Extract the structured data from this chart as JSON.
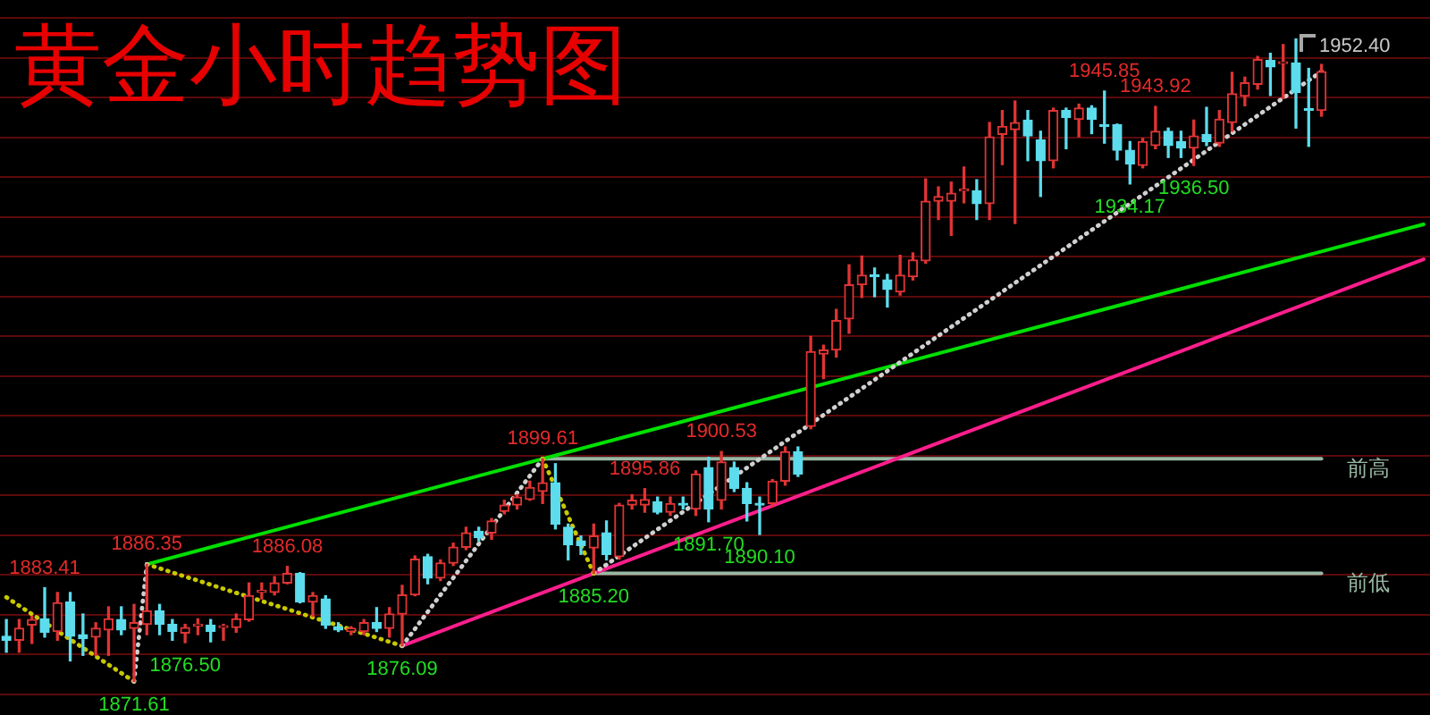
{
  "chart_data": {
    "type": "candlestick",
    "title": "黄金小时趋势图",
    "categories": [
      null,
      null,
      null,
      null,
      null,
      null,
      null,
      null,
      null,
      null,
      null,
      null,
      null,
      null,
      null,
      null,
      null,
      null,
      null,
      null,
      null,
      null,
      null,
      null,
      null,
      null,
      null,
      null,
      null,
      null,
      null,
      null,
      null,
      null,
      null,
      null,
      null,
      null,
      null,
      null,
      null,
      null,
      null,
      null,
      null,
      null,
      null,
      null,
      null,
      null,
      null,
      null,
      null,
      null,
      null,
      null,
      null,
      null,
      null,
      null,
      null,
      null,
      null,
      null,
      null,
      null,
      null,
      null,
      null,
      null,
      null,
      null,
      null,
      null,
      null,
      null,
      null,
      null,
      null,
      null,
      null,
      null,
      null,
      null,
      null,
      null,
      null,
      null,
      null,
      null,
      null,
      null,
      null,
      null,
      null,
      null,
      null,
      null,
      null,
      null,
      null,
      null,
      null,
      null,
      null,
      null,
      null,
      null,
      null,
      null,
      null,
      null
    ],
    "ohlc": [
      [
        1877.3,
        1879.4,
        1875.3,
        1876.8
      ],
      [
        1876.8,
        1879.4,
        1875.3,
        1878.3
      ],
      [
        1878.7,
        1879.8,
        1876.4,
        1879.4
      ],
      [
        1879.5,
        1883.41,
        1877.2,
        1877.8
      ],
      [
        1877.9,
        1882.8,
        1876.8,
        1881.5
      ],
      [
        1881.6,
        1882.8,
        1874.2,
        1877.3
      ],
      [
        1877.5,
        1880.1,
        1874.9,
        1877.0
      ],
      [
        1877.2,
        1879.0,
        1874.9,
        1878.3
      ],
      [
        1878.1,
        1881.0,
        1874.9,
        1879.5
      ],
      [
        1879.4,
        1881.0,
        1877.5,
        1878.1
      ],
      [
        1878.3,
        1881.3,
        1871.61,
        1879.0
      ],
      [
        1878.8,
        1886.35,
        1877.5,
        1880.5
      ],
      [
        1880.5,
        1881.3,
        1877.5,
        1878.8
      ],
      [
        1878.8,
        1879.4,
        1876.8,
        1877.9
      ],
      [
        1877.7,
        1878.8,
        1876.5,
        1878.4
      ],
      [
        1878.6,
        1879.5,
        1877.5,
        1878.8
      ],
      [
        1878.7,
        1879.4,
        1876.6,
        1877.9
      ],
      [
        1878.4,
        1878.8,
        1876.8,
        1878.5
      ],
      [
        1878.4,
        1880.1,
        1877.8,
        1879.5
      ],
      [
        1879.4,
        1884.0,
        1879.2,
        1882.4
      ],
      [
        1882.8,
        1884.0,
        1882.0,
        1883.1
      ],
      [
        1882.8,
        1884.8,
        1882.5,
        1884.0
      ],
      [
        1884.0,
        1886.08,
        1883.9,
        1885.2
      ],
      [
        1885.2,
        1885.3,
        1881.5,
        1881.6
      ],
      [
        1881.6,
        1882.8,
        1879.8,
        1882.4
      ],
      [
        1882.0,
        1882.4,
        1878.3,
        1878.7
      ],
      [
        1878.5,
        1879.0,
        1877.9,
        1878.1
      ],
      [
        1877.9,
        1878.5,
        1877.5,
        1878.3
      ],
      [
        1877.9,
        1879.4,
        1877.5,
        1879.0
      ],
      [
        1879.0,
        1880.9,
        1877.9,
        1878.3
      ],
      [
        1878.3,
        1880.9,
        1877.2,
        1880.1
      ],
      [
        1880.1,
        1883.7,
        1876.09,
        1882.5
      ],
      [
        1882.5,
        1887.4,
        1882.4,
        1887.0
      ],
      [
        1887.3,
        1887.6,
        1883.9,
        1884.6
      ],
      [
        1884.6,
        1886.9,
        1884.3,
        1886.5
      ],
      [
        1886.5,
        1889.0,
        1886.2,
        1888.5
      ],
      [
        1888.5,
        1891.0,
        1888.2,
        1890.3
      ],
      [
        1890.5,
        1891.0,
        1889.3,
        1889.7
      ],
      [
        1890.3,
        1892.1,
        1889.5,
        1891.8
      ],
      [
        1893.0,
        1894.4,
        1892.7,
        1893.8
      ],
      [
        1893.8,
        1895.1,
        1893.3,
        1894.8
      ],
      [
        1894.5,
        1896.8,
        1894.4,
        1896.0
      ],
      [
        1895.5,
        1899.61,
        1894.0,
        1896.6
      ],
      [
        1896.6,
        1899.0,
        1890.8,
        1891.4
      ],
      [
        1891.0,
        1891.4,
        1886.9,
        1888.8
      ],
      [
        1889.3,
        1889.9,
        1887.6,
        1888.7
      ],
      [
        1888.4,
        1891.4,
        1885.2,
        1889.9
      ],
      [
        1890.3,
        1891.8,
        1886.9,
        1887.6
      ],
      [
        1887.3,
        1894.0,
        1887.0,
        1893.8
      ],
      [
        1893.8,
        1895.1,
        1893.3,
        1894.4
      ],
      [
        1893.8,
        1895.86,
        1892.9,
        1894.5
      ],
      [
        1894.2,
        1894.8,
        1892.7,
        1892.9
      ],
      [
        1892.9,
        1894.8,
        1892.5,
        1894.0
      ],
      [
        1894.0,
        1894.8,
        1893.3,
        1893.8
      ],
      [
        1893.3,
        1898.1,
        1892.5,
        1897.7
      ],
      [
        1898.5,
        1899.8,
        1891.7,
        1893.3
      ],
      [
        1894.4,
        1900.53,
        1893.3,
        1899.2
      ],
      [
        1898.5,
        1899.2,
        1895.5,
        1895.9
      ],
      [
        1895.9,
        1896.6,
        1891.8,
        1894.0
      ],
      [
        1894.0,
        1894.8,
        1890.1,
        1893.8
      ],
      [
        1894.0,
        1897.0,
        1893.6,
        1896.8
      ],
      [
        1896.8,
        1901.1,
        1896.3,
        1900.5
      ],
      [
        1900.5,
        1901.1,
        1897.4,
        1897.7
      ],
      [
        1903.7,
        1915.0,
        1903.4,
        1913.1
      ],
      [
        1912.8,
        1913.9,
        1909.7,
        1913.3
      ],
      [
        1913.3,
        1918.4,
        1912.4,
        1917.0
      ],
      [
        1917.2,
        1924.0,
        1915.4,
        1921.5
      ],
      [
        1921.5,
        1925.1,
        1919.9,
        1922.7
      ],
      [
        1922.7,
        1923.6,
        1920.0,
        1922.5
      ],
      [
        1922.1,
        1922.8,
        1918.7,
        1920.9
      ],
      [
        1920.6,
        1925.2,
        1920.2,
        1922.7
      ],
      [
        1922.5,
        1925.5,
        1922.1,
        1924.6
      ],
      [
        1924.5,
        1934.8,
        1924.2,
        1932.0
      ],
      [
        1932.0,
        1933.8,
        1929.7,
        1932.6
      ],
      [
        1932.0,
        1934.4,
        1927.7,
        1933.0
      ],
      [
        1933.3,
        1936.3,
        1931.8,
        1933.5
      ],
      [
        1933.3,
        1934.7,
        1929.7,
        1931.7
      ],
      [
        1931.7,
        1941.9,
        1929.7,
        1940.1
      ],
      [
        1940.4,
        1943.4,
        1936.6,
        1941.4
      ],
      [
        1941.0,
        1944.6,
        1929.2,
        1941.9
      ],
      [
        1942.2,
        1943.4,
        1937.1,
        1940.2
      ],
      [
        1939.7,
        1940.8,
        1932.6,
        1937.1
      ],
      [
        1937.1,
        1943.7,
        1936.2,
        1943.4
      ],
      [
        1943.4,
        1943.7,
        1938.6,
        1942.5
      ],
      [
        1942.3,
        1944.2,
        1940.1,
        1943.7
      ],
      [
        1943.7,
        1944.0,
        1940.5,
        1942.3
      ],
      [
        1941.6,
        1945.85,
        1939.3,
        1941.4
      ],
      [
        1941.6,
        1941.7,
        1937.2,
        1938.4
      ],
      [
        1938.4,
        1939.5,
        1934.17,
        1936.7
      ],
      [
        1936.5,
        1939.9,
        1936.2,
        1939.5
      ],
      [
        1939.0,
        1943.92,
        1938.6,
        1940.8
      ],
      [
        1940.8,
        1941.2,
        1937.5,
        1939.0
      ],
      [
        1939.5,
        1940.8,
        1937.5,
        1938.7
      ],
      [
        1938.7,
        1942.2,
        1936.5,
        1940.2
      ],
      [
        1940.4,
        1943.8,
        1939.0,
        1939.5
      ],
      [
        1939.3,
        1943.4,
        1938.9,
        1942.3
      ],
      [
        1941.9,
        1948.2,
        1940.8,
        1945.5
      ],
      [
        1945.2,
        1947.6,
        1944.0,
        1946.9
      ],
      [
        1946.7,
        1950.2,
        1946.1,
        1949.8
      ],
      [
        1949.7,
        1950.6,
        1945.3,
        1948.9
      ],
      [
        1949.3,
        1951.7,
        1944.9,
        1949.4
      ],
      [
        1949.4,
        1952.4,
        1941.2,
        1945.7
      ],
      [
        1943.6,
        1948.7,
        1938.9,
        1943.4
      ],
      [
        1943.4,
        1949.2,
        1942.7,
        1948.3
      ],
      null,
      null,
      null,
      null,
      null,
      null,
      null,
      null
    ],
    "colors": [
      "#5cdcec",
      "#e03434",
      "#e03434",
      "#5cdcec",
      "#e03434",
      "#5cdcec",
      "#5cdcec",
      "#e03434",
      "#e03434",
      "#5cdcec",
      "#e03434",
      "#e03434",
      "#5cdcec",
      "#5cdcec",
      "#e03434",
      "#e03434",
      "#5cdcec",
      "#e03434",
      "#e03434",
      "#e03434",
      "#e03434",
      "#e03434",
      "#e03434",
      "#5cdcec",
      "#e03434",
      "#5cdcec",
      "#5cdcec",
      "#e03434",
      "#e03434",
      "#5cdcec",
      "#e03434",
      "#e03434",
      "#e03434",
      "#5cdcec",
      "#e03434",
      "#e03434",
      "#e03434",
      "#5cdcec",
      "#e03434",
      "#e03434",
      "#e03434",
      "#e03434",
      "#e03434",
      "#5cdcec",
      "#5cdcec",
      "#5cdcec",
      "#e03434",
      "#5cdcec",
      "#e03434",
      "#e03434",
      "#e03434",
      "#5cdcec",
      "#e03434",
      "#5cdcec",
      "#e03434",
      "#5cdcec",
      "#e03434",
      "#5cdcec",
      "#5cdcec",
      "#5cdcec",
      "#e03434",
      "#e03434",
      "#5cdcec",
      "#e03434",
      "#e03434",
      "#e03434",
      "#e03434",
      "#e03434",
      "#5cdcec",
      "#5cdcec",
      "#e03434",
      "#e03434",
      "#e03434",
      "#e03434",
      "#e03434",
      "#e03434",
      "#5cdcec",
      "#e03434",
      "#e03434",
      "#e03434",
      "#5cdcec",
      "#5cdcec",
      "#e03434",
      "#5cdcec",
      "#e03434",
      "#5cdcec",
      "#5cdcec",
      "#5cdcec",
      "#5cdcec",
      "#e03434",
      "#e03434",
      "#5cdcec",
      "#5cdcec",
      "#e03434",
      "#5cdcec",
      "#e03434",
      "#e03434",
      "#e03434",
      "#e03434",
      "#5cdcec",
      "#e03434",
      "#5cdcec",
      "#5cdcec",
      "#e03434",
      null,
      null,
      null,
      null,
      null,
      null,
      null,
      null
    ],
    "series": [
      {
        "type": "line",
        "color": "#00e000",
        "line_style": "solid",
        "values": [
          null,
          null,
          null,
          null,
          null,
          null,
          null,
          null,
          null,
          null,
          null,
          1886.35,
          null,
          null,
          null,
          null,
          null,
          null,
          null,
          null,
          null,
          null,
          null,
          null,
          null,
          null,
          null,
          null,
          null,
          null,
          null,
          null,
          null,
          null,
          null,
          null,
          null,
          null,
          null,
          null,
          null,
          null,
          1899.61,
          null,
          null,
          null,
          null,
          null,
          null,
          null,
          null,
          null,
          null,
          null,
          null,
          null,
          null,
          null,
          null,
          null,
          null,
          null,
          null,
          null,
          null,
          null,
          null,
          null,
          null,
          null,
          null,
          null,
          null,
          null,
          null,
          null,
          null,
          null,
          null,
          null,
          null,
          null,
          null,
          null,
          null,
          null,
          null,
          null,
          null,
          null,
          null,
          null,
          null,
          null,
          null,
          null,
          null,
          null,
          null,
          null,
          null,
          null,
          null,
          null,
          null,
          null,
          null,
          null,
          null,
          null,
          null,
          1929.1
        ]
      },
      {
        "type": "line",
        "color": "#ff1e8c",
        "line_style": "solid",
        "values": [
          null,
          null,
          null,
          null,
          null,
          null,
          null,
          null,
          null,
          null,
          null,
          null,
          null,
          null,
          null,
          null,
          null,
          null,
          null,
          null,
          null,
          null,
          null,
          null,
          null,
          null,
          null,
          null,
          null,
          null,
          null,
          1876.09,
          null,
          null,
          null,
          null,
          null,
          null,
          null,
          null,
          null,
          null,
          null,
          null,
          null,
          null,
          1885.2,
          null,
          null,
          null,
          null,
          null,
          null,
          null,
          null,
          null,
          null,
          null,
          null,
          null,
          null,
          null,
          null,
          null,
          null,
          null,
          null,
          null,
          null,
          null,
          null,
          null,
          null,
          null,
          null,
          null,
          null,
          null,
          null,
          null,
          null,
          null,
          null,
          null,
          null,
          null,
          null,
          null,
          null,
          null,
          null,
          null,
          null,
          null,
          null,
          null,
          null,
          null,
          null,
          null,
          null,
          null,
          null,
          null,
          null,
          null,
          null,
          null,
          null,
          null,
          null,
          1924.7
        ]
      },
      {
        "type": "line",
        "name": "前高",
        "color": "#98b8a4",
        "line_style": "solid",
        "values": [
          null,
          null,
          null,
          null,
          null,
          null,
          null,
          null,
          null,
          null,
          null,
          null,
          null,
          null,
          null,
          null,
          null,
          null,
          null,
          null,
          null,
          null,
          null,
          null,
          null,
          null,
          null,
          null,
          null,
          null,
          null,
          null,
          null,
          null,
          null,
          null,
          null,
          null,
          null,
          null,
          null,
          null,
          1899.61,
          null,
          null,
          null,
          null,
          null,
          null,
          null,
          null,
          null,
          null,
          null,
          null,
          null,
          null,
          null,
          null,
          null,
          null,
          null,
          null,
          null,
          null,
          null,
          null,
          null,
          null,
          null,
          null,
          null,
          null,
          null,
          null,
          null,
          null,
          null,
          null,
          null,
          null,
          null,
          null,
          null,
          null,
          null,
          null,
          null,
          null,
          null,
          null,
          null,
          null,
          null,
          null,
          null,
          null,
          null,
          null,
          null,
          null,
          null,
          null,
          1899.61,
          null,
          null,
          null,
          null,
          null,
          null,
          null,
          null
        ]
      },
      {
        "type": "line",
        "name": "前低",
        "color": "#98b8a4",
        "line_style": "solid",
        "values": [
          null,
          null,
          null,
          null,
          null,
          null,
          null,
          null,
          null,
          null,
          null,
          null,
          null,
          null,
          null,
          null,
          null,
          null,
          null,
          null,
          null,
          null,
          null,
          null,
          null,
          null,
          null,
          null,
          null,
          null,
          null,
          null,
          null,
          null,
          null,
          null,
          null,
          null,
          null,
          null,
          null,
          null,
          null,
          null,
          null,
          null,
          1885.2,
          null,
          null,
          null,
          null,
          null,
          null,
          null,
          null,
          null,
          null,
          null,
          null,
          null,
          null,
          null,
          null,
          null,
          null,
          null,
          null,
          null,
          null,
          null,
          null,
          null,
          null,
          null,
          null,
          null,
          null,
          null,
          null,
          null,
          null,
          null,
          null,
          null,
          null,
          null,
          null,
          null,
          null,
          null,
          null,
          null,
          null,
          null,
          null,
          null,
          null,
          null,
          null,
          null,
          null,
          null,
          null,
          1885.2,
          null,
          null,
          null,
          null,
          null,
          null,
          null,
          null
        ]
      },
      {
        "type": "line",
        "color": "#c8c800",
        "line_style": "dotted",
        "values": [
          1882.2,
          null,
          null,
          null,
          null,
          null,
          null,
          null,
          null,
          null,
          1871.61,
          null,
          null,
          null,
          null,
          null,
          null,
          null,
          null,
          null,
          null,
          null,
          null,
          null,
          null,
          null,
          null,
          null,
          null,
          null,
          null,
          null,
          null,
          null,
          null,
          null,
          null,
          null,
          null,
          null,
          null,
          null,
          null,
          null,
          null,
          null,
          null,
          null,
          null,
          null,
          null,
          null,
          null,
          null,
          null,
          null,
          null,
          null,
          null,
          null,
          null,
          null,
          null,
          null,
          null,
          null,
          null,
          null,
          null,
          null,
          null,
          null,
          null,
          null,
          null,
          null,
          null,
          null,
          null,
          null,
          null,
          null,
          null,
          null,
          null,
          null,
          null,
          null,
          null,
          null,
          null,
          null,
          null,
          null,
          null,
          null,
          null,
          null,
          null,
          null,
          null,
          null,
          null,
          null,
          null,
          null,
          null,
          null,
          null,
          null,
          null,
          null
        ]
      },
      {
        "type": "line",
        "color": "#d0d0d0",
        "line_style": "dotted",
        "values": [
          null,
          null,
          null,
          null,
          null,
          null,
          null,
          null,
          null,
          null,
          1871.61,
          1886.35,
          null,
          null,
          null,
          null,
          null,
          null,
          null,
          null,
          null,
          null,
          null,
          null,
          null,
          null,
          null,
          null,
          null,
          null,
          null,
          null,
          null,
          null,
          null,
          null,
          null,
          null,
          null,
          null,
          null,
          null,
          null,
          null,
          null,
          null,
          null,
          null,
          null,
          null,
          null,
          null,
          null,
          null,
          null,
          null,
          null,
          null,
          null,
          null,
          null,
          null,
          null,
          null,
          null,
          null,
          null,
          null,
          null,
          null,
          null,
          null,
          null,
          null,
          null,
          null,
          null,
          null,
          null,
          null,
          null,
          null,
          null,
          null,
          null,
          null,
          null,
          null,
          null,
          null,
          null,
          null,
          null,
          null,
          null,
          null,
          null,
          null,
          null,
          null,
          null,
          null,
          null,
          null,
          null,
          null,
          null,
          null,
          null,
          null,
          null,
          null
        ]
      },
      {
        "type": "line",
        "color": "#c8c800",
        "line_style": "dotted",
        "values": [
          null,
          null,
          null,
          null,
          null,
          null,
          null,
          null,
          null,
          null,
          null,
          1886.35,
          null,
          null,
          null,
          null,
          null,
          null,
          null,
          null,
          null,
          null,
          null,
          null,
          null,
          null,
          null,
          null,
          null,
          null,
          null,
          1876.09,
          null,
          null,
          null,
          null,
          null,
          null,
          null,
          null,
          null,
          null,
          null,
          null,
          null,
          null,
          null,
          null,
          null,
          null,
          null,
          null,
          null,
          null,
          null,
          null,
          null,
          null,
          null,
          null,
          null,
          null,
          null,
          null,
          null,
          null,
          null,
          null,
          null,
          null,
          null,
          null,
          null,
          null,
          null,
          null,
          null,
          null,
          null,
          null,
          null,
          null,
          null,
          null,
          null,
          null,
          null,
          null,
          null,
          null,
          null,
          null,
          null,
          null,
          null,
          null,
          null,
          null,
          null,
          null,
          null,
          null,
          null,
          null,
          null,
          null,
          null,
          null,
          null,
          null,
          null,
          null
        ]
      },
      {
        "type": "line",
        "color": "#d0d0d0",
        "line_style": "dotted",
        "values": [
          null,
          null,
          null,
          null,
          null,
          null,
          null,
          null,
          null,
          null,
          null,
          null,
          null,
          null,
          null,
          null,
          null,
          null,
          null,
          null,
          null,
          null,
          null,
          null,
          null,
          null,
          null,
          null,
          null,
          null,
          null,
          1876.09,
          null,
          null,
          null,
          null,
          null,
          null,
          null,
          null,
          null,
          null,
          1899.61,
          null,
          null,
          null,
          null,
          null,
          null,
          null,
          null,
          null,
          null,
          null,
          null,
          null,
          null,
          null,
          null,
          null,
          null,
          null,
          null,
          null,
          null,
          null,
          null,
          null,
          null,
          null,
          null,
          null,
          null,
          null,
          null,
          null,
          null,
          null,
          null,
          null,
          null,
          null,
          null,
          null,
          null,
          null,
          null,
          null,
          null,
          null,
          null,
          null,
          null,
          null,
          null,
          null,
          null,
          null,
          null,
          null,
          null,
          null,
          null,
          null,
          null,
          null,
          null,
          null,
          null,
          null,
          null,
          null
        ]
      },
      {
        "type": "line",
        "color": "#c8c800",
        "line_style": "dotted",
        "values": [
          null,
          null,
          null,
          null,
          null,
          null,
          null,
          null,
          null,
          null,
          null,
          null,
          null,
          null,
          null,
          null,
          null,
          null,
          null,
          null,
          null,
          null,
          null,
          null,
          null,
          null,
          null,
          null,
          null,
          null,
          null,
          null,
          null,
          null,
          null,
          null,
          null,
          null,
          null,
          null,
          null,
          null,
          1899.61,
          null,
          null,
          null,
          1885.2,
          null,
          null,
          null,
          null,
          null,
          null,
          null,
          null,
          null,
          null,
          null,
          null,
          null,
          null,
          null,
          null,
          null,
          null,
          null,
          null,
          null,
          null,
          null,
          null,
          null,
          null,
          null,
          null,
          null,
          null,
          null,
          null,
          null,
          null,
          null,
          null,
          null,
          null,
          null,
          null,
          null,
          null,
          null,
          null,
          null,
          null,
          null,
          null,
          null,
          null,
          null,
          null,
          null,
          null,
          null,
          null,
          null,
          null,
          null,
          null,
          null,
          null,
          null,
          null,
          null
        ]
      },
      {
        "type": "line",
        "color": "#d0d0d0",
        "line_style": "dotted",
        "values": [
          null,
          null,
          null,
          null,
          null,
          null,
          null,
          null,
          null,
          null,
          null,
          null,
          null,
          null,
          null,
          null,
          null,
          null,
          null,
          null,
          null,
          null,
          null,
          null,
          null,
          null,
          null,
          null,
          null,
          null,
          null,
          null,
          null,
          null,
          null,
          null,
          null,
          null,
          null,
          null,
          null,
          null,
          null,
          null,
          null,
          null,
          1885.2,
          null,
          null,
          null,
          null,
          null,
          null,
          null,
          null,
          null,
          null,
          null,
          null,
          null,
          null,
          null,
          null,
          null,
          null,
          null,
          null,
          null,
          null,
          null,
          null,
          null,
          null,
          null,
          null,
          null,
          null,
          null,
          null,
          null,
          null,
          null,
          null,
          null,
          null,
          null,
          null,
          null,
          null,
          null,
          null,
          null,
          null,
          null,
          null,
          null,
          null,
          null,
          null,
          null,
          null,
          null,
          null,
          1948.3,
          null,
          null,
          null,
          null,
          null,
          null,
          null,
          null
        ]
      }
    ],
    "annotations": [
      {
        "text": "1883.41",
        "y": 1883.41
      },
      {
        "text": "1886.35",
        "y": 1886.35
      },
      {
        "text": "1871.61",
        "y": 1871.61
      },
      {
        "text": "1876.50",
        "y": 1876.5
      },
      {
        "text": "1886.08",
        "y": 1886.08
      },
      {
        "text": "1876.09",
        "y": 1876.09
      },
      {
        "text": "1899.61",
        "y": 1899.61
      },
      {
        "text": "1885.20",
        "y": 1885.2
      },
      {
        "text": "1895.86",
        "y": 1895.86
      },
      {
        "text": "1900.53",
        "y": 1900.53
      },
      {
        "text": "1891.70",
        "y": 1891.7
      },
      {
        "text": "1890.10",
        "y": 1890.1
      },
      {
        "text": "1945.85",
        "y": 1945.85
      },
      {
        "text": "1943.92",
        "y": 1943.92
      },
      {
        "text": "1934.17",
        "y": 1934.17
      },
      {
        "text": "1936.50",
        "y": 1936.5
      },
      "1952.40"
    ],
    "ylim": [
      1867.4,
      1957.3
    ],
    "yticks": [
      {
        "value": 1870,
        "label": null
      },
      {
        "value": 1875,
        "label": null
      },
      {
        "value": 1880,
        "label": null
      },
      {
        "value": 1885,
        "label": null
      },
      {
        "value": 1890,
        "label": null
      },
      {
        "value": 1895,
        "label": null
      },
      {
        "value": 1900,
        "label": null
      },
      {
        "value": 1905,
        "label": null
      },
      {
        "value": 1910,
        "label": null
      },
      {
        "value": 1915,
        "label": null
      },
      {
        "value": 1920,
        "label": null
      },
      {
        "value": 1925,
        "label": null
      },
      {
        "value": 1930,
        "label": null
      },
      {
        "value": 1935,
        "label": null
      },
      {
        "value": 1940,
        "label": null
      },
      {
        "value": 1945,
        "label": null
      },
      {
        "value": 1950,
        "label": null
      },
      {
        "value": 1955,
        "label": null
      }
    ],
    "grid": "y",
    "tick_labels": false
  }
}
